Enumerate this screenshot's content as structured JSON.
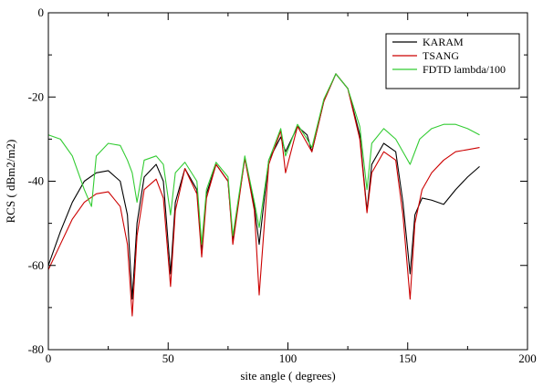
{
  "chart_data": {
    "type": "line",
    "title": "",
    "xlabel": "site angle ( degrees)",
    "ylabel": "RCS ( dBm2/m2)",
    "xlim": [
      0,
      200
    ],
    "ylim": [
      -80,
      0
    ],
    "xticks": [
      0,
      50,
      100,
      150,
      200
    ],
    "yticks": [
      -80,
      -60,
      -40,
      -20,
      0
    ],
    "grid": false,
    "legend_position": "top-right",
    "series": [
      {
        "name": "KARAM",
        "color": "#000000",
        "x": [
          0,
          5,
          10,
          15,
          20,
          25,
          30,
          33,
          35,
          37,
          40,
          45,
          48,
          51,
          53,
          57,
          62,
          64,
          66,
          70,
          75,
          77,
          82,
          86,
          88,
          92,
          97,
          99,
          104,
          108,
          110,
          115,
          120,
          125,
          130,
          133,
          135,
          140,
          145,
          148,
          151,
          153,
          156,
          160,
          165,
          170,
          175,
          180
        ],
        "y": [
          -60,
          -52,
          -45,
          -40,
          -38,
          -37.5,
          -40,
          -48,
          -68,
          -50,
          -39,
          -36,
          -40,
          -62,
          -45,
          -37,
          -42,
          -57,
          -43,
          -36,
          -40,
          -54,
          -34.5,
          -46,
          -55,
          -35,
          -29.5,
          -33,
          -27,
          -29,
          -33,
          -21,
          -14.5,
          -18,
          -29,
          -47,
          -36,
          -31,
          -33,
          -45,
          -62,
          -48,
          -44,
          -44.5,
          -45.5,
          -42,
          -39,
          -36.5
        ]
      },
      {
        "name": "TSANG",
        "color": "#cc0000",
        "x": [
          0,
          5,
          10,
          15,
          20,
          25,
          30,
          33,
          35,
          37,
          40,
          45,
          48,
          51,
          53,
          57,
          62,
          64,
          66,
          70,
          75,
          77,
          82,
          86,
          88,
          92,
          97,
          99,
          104,
          108,
          110,
          115,
          120,
          125,
          130,
          133,
          135,
          140,
          145,
          148,
          151,
          153,
          156,
          160,
          165,
          170,
          175,
          180
        ],
        "y": [
          -61,
          -55,
          -49,
          -45,
          -43,
          -42.5,
          -46,
          -55,
          -72,
          -53,
          -42,
          -39.5,
          -44,
          -65,
          -47,
          -37,
          -43,
          -58,
          -44,
          -36,
          -40,
          -55,
          -34.5,
          -47,
          -67,
          -36,
          -28,
          -38,
          -27,
          -31,
          -33,
          -21,
          -14.5,
          -18,
          -30,
          -47.5,
          -38,
          -33,
          -35,
          -48,
          -68,
          -50,
          -42,
          -38,
          -35,
          -33,
          -32.5,
          -32
        ]
      },
      {
        "name": "FDTD lambda/100",
        "color": "#33cc33",
        "x": [
          0,
          5,
          10,
          15,
          18,
          20,
          25,
          30,
          33,
          35,
          37,
          40,
          45,
          48,
          51,
          53,
          57,
          62,
          64,
          66,
          70,
          75,
          77,
          82,
          86,
          88,
          92,
          97,
          99,
          104,
          108,
          110,
          115,
          120,
          125,
          130,
          133,
          135,
          140,
          145,
          148,
          151,
          155,
          160,
          165,
          170,
          175,
          180
        ],
        "y": [
          -29,
          -30,
          -34,
          -42,
          -46,
          -34,
          -31,
          -31.5,
          -35,
          -38,
          -45,
          -35,
          -34,
          -36,
          -48,
          -38,
          -35.5,
          -40,
          -55,
          -42,
          -35.5,
          -39,
          -53,
          -34,
          -45,
          -51,
          -35,
          -27.5,
          -34,
          -26.5,
          -30,
          -32,
          -20.5,
          -14.5,
          -18,
          -27,
          -42,
          -31,
          -27.5,
          -30,
          -33,
          -36,
          -30,
          -27.5,
          -26.5,
          -26.5,
          -27.5,
          -29
        ]
      }
    ]
  }
}
